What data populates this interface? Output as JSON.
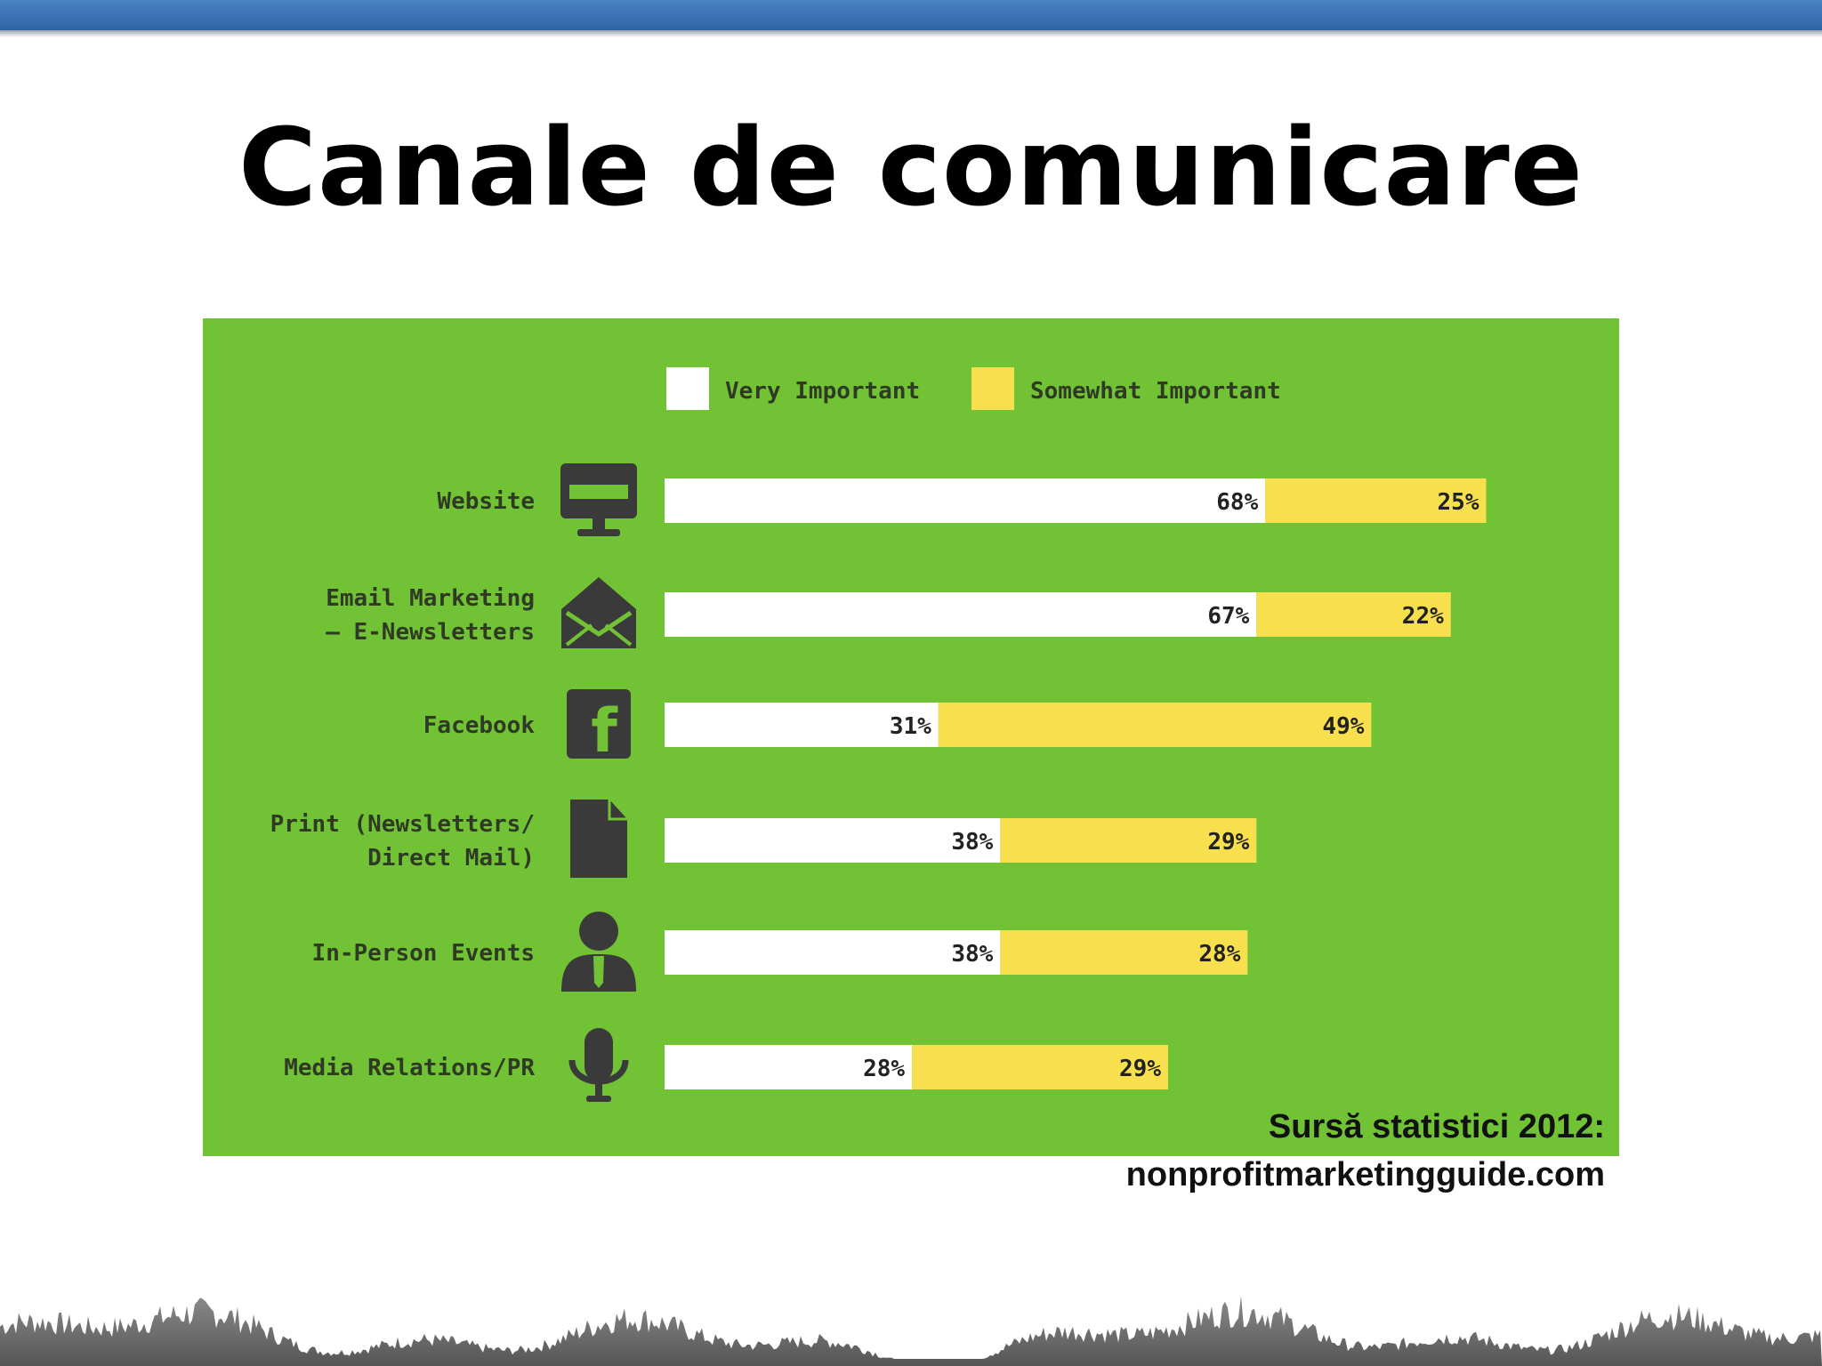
{
  "slide": {
    "title": "Canale de comunicare",
    "source_line1": "Sursă statistici 2012:",
    "source_line2": "nonprofitmarketingguide.com"
  },
  "colors": {
    "topbar": "#3a70b6",
    "panel": "#72c236",
    "very_important": "#ffffff",
    "somewhat_important": "#f7df4e",
    "icon": "#3a3a3a",
    "label_text": "#2f3a24"
  },
  "chart_data": {
    "type": "bar",
    "orientation": "horizontal",
    "stacked": true,
    "title": "",
    "xlabel": "",
    "ylabel": "",
    "xlim": [
      0,
      100
    ],
    "grid": false,
    "legend_position": "top",
    "categories": [
      "Website",
      "Email Marketing — E-Newsletters",
      "Facebook",
      "Print (Newsletters/ Direct Mail)",
      "In-Person Events",
      "Media Relations/PR"
    ],
    "category_lines": [
      [
        "Website"
      ],
      [
        "Email Marketing",
        "— E-Newsletters"
      ],
      [
        "Facebook"
      ],
      [
        "Print (Newsletters/",
        "Direct Mail)"
      ],
      [
        "In-Person Events"
      ],
      [
        "Media Relations/PR"
      ]
    ],
    "icons": [
      "monitor-icon",
      "envelope-icon",
      "facebook-icon",
      "document-icon",
      "person-icon",
      "microphone-icon"
    ],
    "series": [
      {
        "name": "Very Important",
        "color": "#ffffff",
        "values": [
          68,
          67,
          31,
          38,
          38,
          28
        ],
        "labels": [
          "68%",
          "67%",
          "31%",
          "38%",
          "38%",
          "28%"
        ]
      },
      {
        "name": "Somewhat Important",
        "color": "#f7df4e",
        "values": [
          25,
          22,
          49,
          29,
          28,
          29
        ],
        "labels": [
          "25%",
          "22%",
          "49%",
          "29%",
          "28%",
          "29%"
        ]
      }
    ]
  }
}
